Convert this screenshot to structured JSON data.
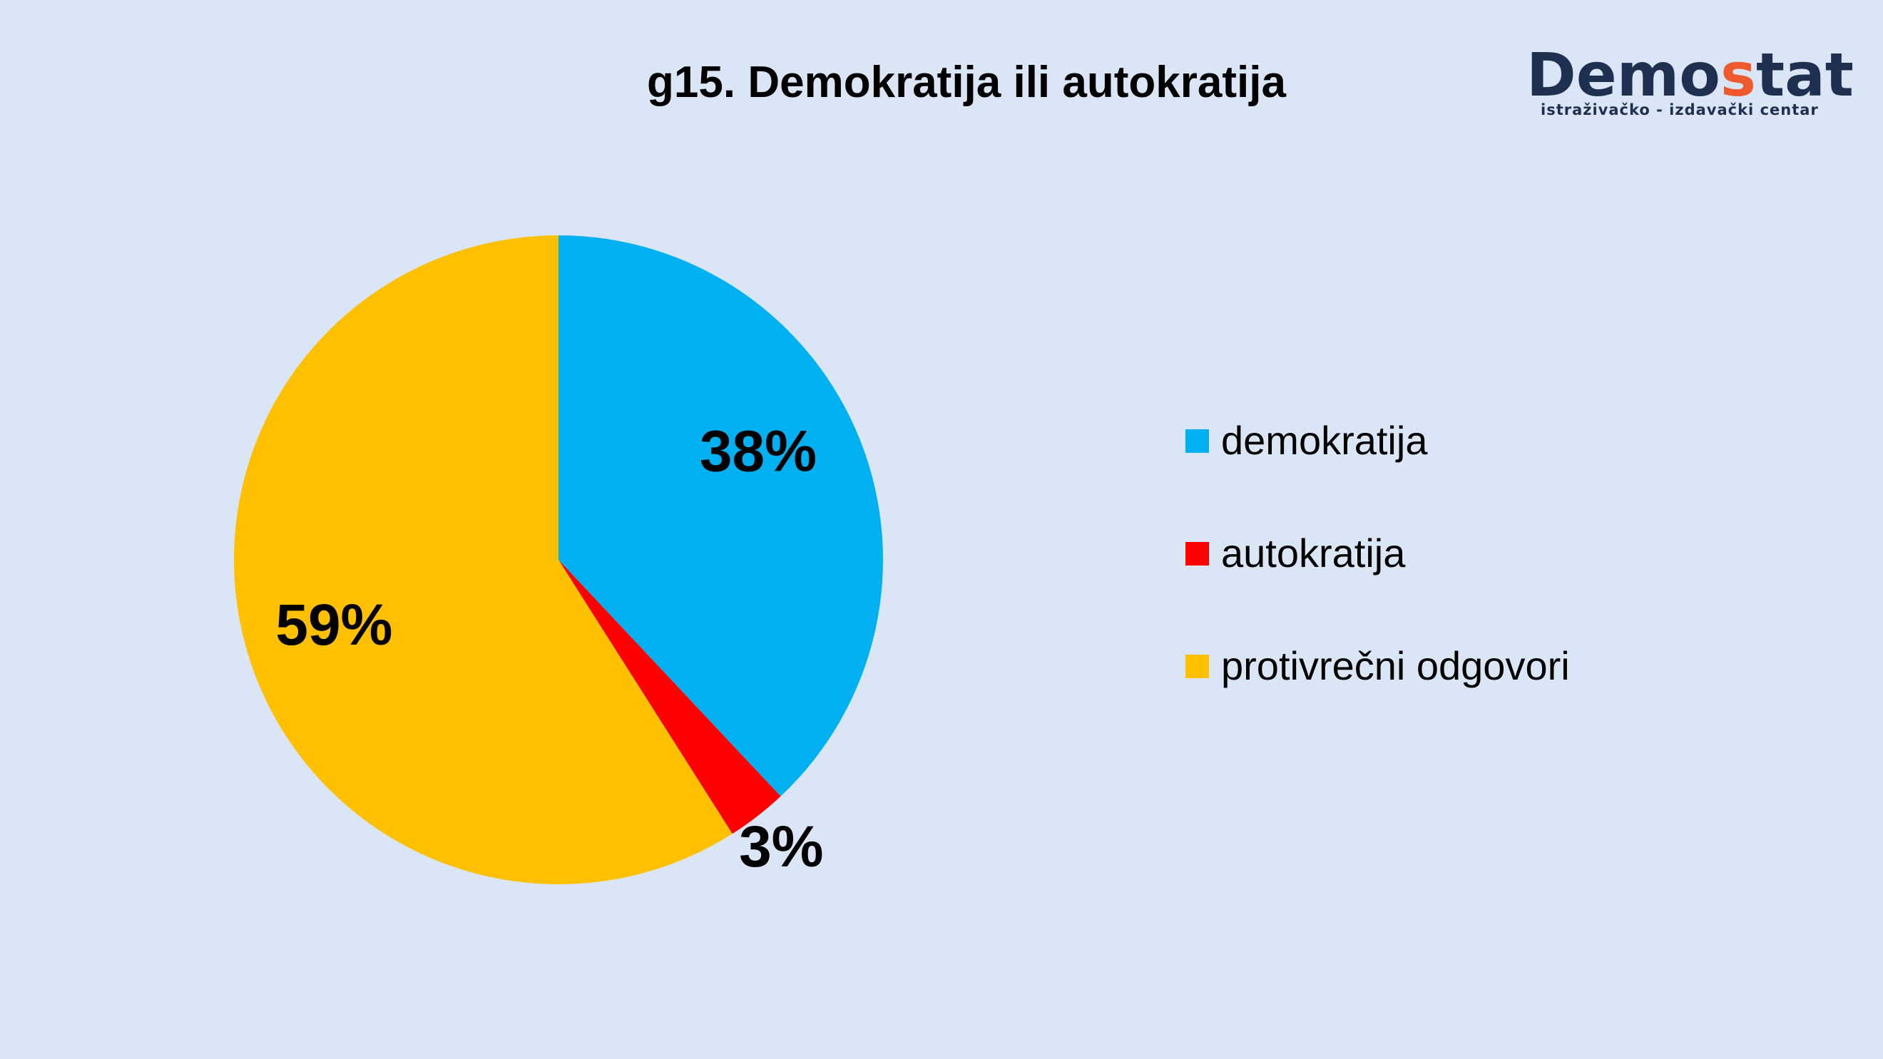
{
  "brand": {
    "word_prefix": "Demo",
    "word_accent": "s",
    "word_suffix": "tat",
    "subtitle": "istraživačko - izdavački centar",
    "colors": {
      "text": "#1f2f4f",
      "accent": "#ee5a2e"
    }
  },
  "chart_data": {
    "type": "pie",
    "title": "g15. Demokratija ili autokratija",
    "legend_position": "right",
    "slices": [
      {
        "name": "demokratija",
        "value": 38,
        "label": "38%",
        "color": "#00b0f0"
      },
      {
        "name": "autokratija",
        "value": 3,
        "label": "3%",
        "color": "#ff0000"
      },
      {
        "name": "protivrečni odgovori",
        "value": 59,
        "label": "59%",
        "color": "#ffc000"
      }
    ]
  }
}
